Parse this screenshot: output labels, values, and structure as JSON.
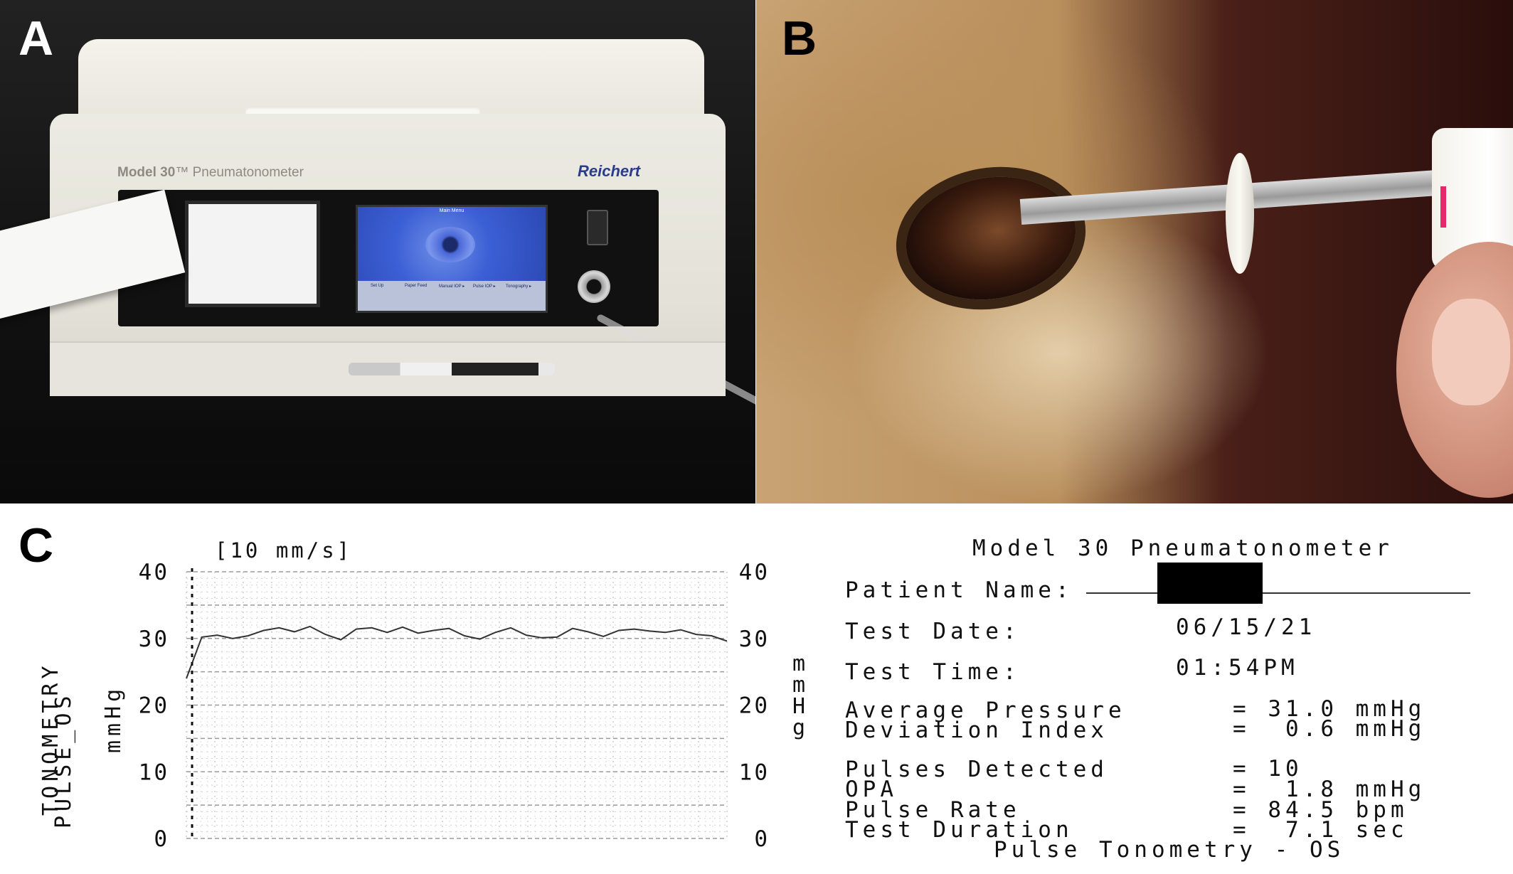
{
  "figure": {
    "panel_labels": [
      "A",
      "B",
      "C"
    ]
  },
  "panel_a": {
    "device_model": "Model 30",
    "device_model_suffix": "™ Pneumatonometer",
    "brand": "Reichert",
    "screen_title": "Main Menu",
    "screen_buttons": [
      "Set Up",
      "Paper Feed",
      "Manual IOP ▸",
      "Pulse IOP ▸",
      "Tonography ▸"
    ]
  },
  "panel_c": {
    "speed_label": "[10 mm/s]",
    "side_title": "TONOMETRY",
    "side_subtitle": "PULSE_OS",
    "unit_left": "mmHg",
    "unit_right": [
      "m",
      "m",
      "H",
      "g"
    ],
    "header": "Model 30 Pneumatonometer",
    "fields": {
      "patient_name_label": "Patient Name:",
      "test_date_label": "Test Date:",
      "test_date": "06/15/21",
      "test_time_label": "Test Time:",
      "test_time": "01:54PM",
      "avg_pressure_label": "Average Pressure",
      "avg_pressure": "= 31.0 mmHg",
      "deviation_label": "Deviation Index",
      "deviation": "=  0.6 mmHg",
      "pulses_label": "Pulses Detected",
      "pulses": "= 10",
      "opa_label": "OPA",
      "opa": "=  1.8 mmHg",
      "pulse_rate_label": "Pulse Rate",
      "pulse_rate": "= 84.5 bpm",
      "duration_label": "Test Duration",
      "duration": "=  7.1 sec",
      "footer": "Pulse Tonometry - OS"
    }
  },
  "chart_data": {
    "type": "line",
    "title": "",
    "xlabel": "",
    "ylabel": "mmHg",
    "ylim": [
      0,
      40
    ],
    "yticks": [
      "0",
      "10",
      "20",
      "30",
      "40"
    ],
    "grid": true,
    "x": [
      0,
      0.2,
      0.4,
      0.6,
      0.8,
      1.0,
      1.2,
      1.4,
      1.6,
      1.8,
      2.0,
      2.2,
      2.4,
      2.6,
      2.8,
      3.0,
      3.2,
      3.4,
      3.6,
      3.8,
      4.0,
      4.2,
      4.4,
      4.6,
      4.8,
      5.0,
      5.2,
      5.4,
      5.6,
      5.8,
      6.0,
      6.2,
      6.4,
      6.6,
      6.8,
      7.0
    ],
    "series": [
      {
        "values": [
          24,
          30.2,
          30.5,
          30.0,
          30.4,
          31.2,
          31.6,
          31.0,
          31.8,
          30.6,
          29.8,
          31.4,
          31.6,
          30.9,
          31.7,
          30.8,
          31.2,
          31.5,
          30.4,
          29.9,
          30.9,
          31.6,
          30.5,
          30.1,
          30.2,
          31.5,
          31.0,
          30.3,
          31.2,
          31.4,
          31.1,
          30.9,
          31.3,
          30.6,
          30.4,
          29.6
        ]
      }
    ]
  }
}
